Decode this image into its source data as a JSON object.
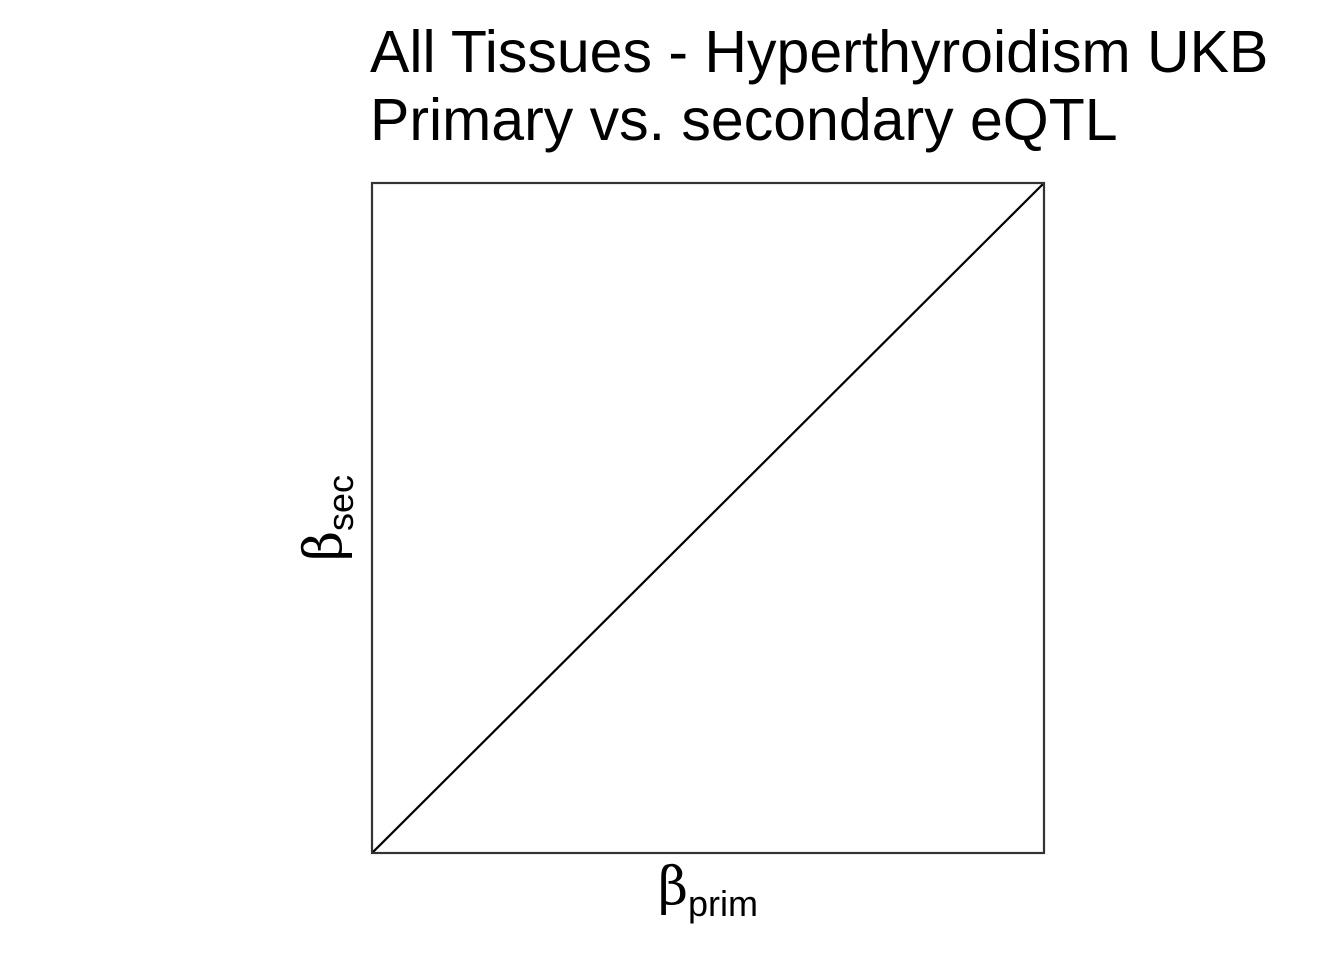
{
  "title": {
    "line1": "All Tissues - Hyperthyroidism UKB",
    "line2": "Primary vs. secondary eQTL"
  },
  "axes": {
    "x_label_symbol": "β",
    "x_label_subscript": "prim",
    "y_label_symbol": "β",
    "y_label_subscript": "sec"
  },
  "colors": {
    "background": "#ffffff",
    "frame": "#333333",
    "reference_line": "#000000",
    "text": "#000000"
  },
  "chart_data": {
    "type": "scatter",
    "title": "All Tissues - Hyperthyroidism UKB\nPrimary vs. secondary eQTL",
    "xlabel": "βprim",
    "ylabel": "βsec",
    "xlim": [
      0,
      1
    ],
    "ylim": [
      0,
      1
    ],
    "grid": false,
    "legend": "none",
    "points": [],
    "reference_line": {
      "name": "",
      "x": [
        0,
        1
      ],
      "y": [
        0,
        1
      ]
    }
  }
}
